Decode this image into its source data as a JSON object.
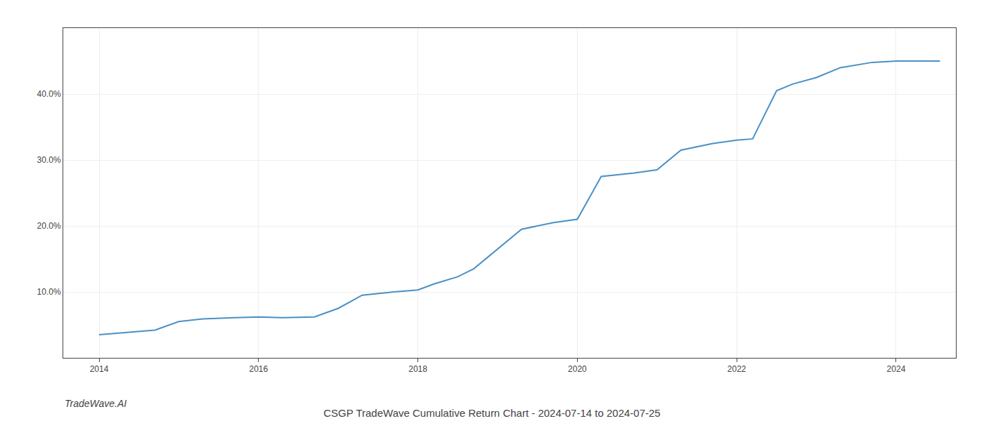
{
  "chart_data": {
    "type": "line",
    "title": "CSGP TradeWave Cumulative Return Chart - 2024-07-14 to 2024-07-25",
    "annotations": [
      "TradeWave.AI"
    ],
    "x": [
      2014.0,
      2014.3,
      2014.7,
      2015.0,
      2015.3,
      2015.7,
      2016.0,
      2016.3,
      2016.7,
      2017.0,
      2017.3,
      2017.7,
      2018.0,
      2018.2,
      2018.5,
      2018.7,
      2019.0,
      2019.3,
      2019.7,
      2020.0,
      2020.3,
      2020.7,
      2021.0,
      2021.3,
      2021.7,
      2022.0,
      2022.2,
      2022.5,
      2022.7,
      2023.0,
      2023.3,
      2023.7,
      2024.0,
      2024.3,
      2024.55
    ],
    "values": [
      3.5,
      3.8,
      4.2,
      5.5,
      5.9,
      6.1,
      6.2,
      6.1,
      6.2,
      7.5,
      9.5,
      10.0,
      10.3,
      11.2,
      12.3,
      13.5,
      16.5,
      19.5,
      20.5,
      21.0,
      27.5,
      28.0,
      28.5,
      31.5,
      32.5,
      33.0,
      33.2,
      40.5,
      41.5,
      42.5,
      44.0,
      44.8,
      45.0,
      45.0,
      45.0
    ],
    "color": "#4a90c4",
    "xlim": [
      2013.55,
      2024.75
    ],
    "ylim": [
      0,
      50
    ],
    "xticks": [
      2014,
      2016,
      2018,
      2020,
      2022,
      2024
    ],
    "yticks": [
      {
        "value": 10.0,
        "label": "10.0%"
      },
      {
        "value": 20.0,
        "label": "20.0%"
      },
      {
        "value": 30.0,
        "label": "30.0%"
      },
      {
        "value": 40.0,
        "label": "40.0%"
      }
    ],
    "grid": true
  }
}
